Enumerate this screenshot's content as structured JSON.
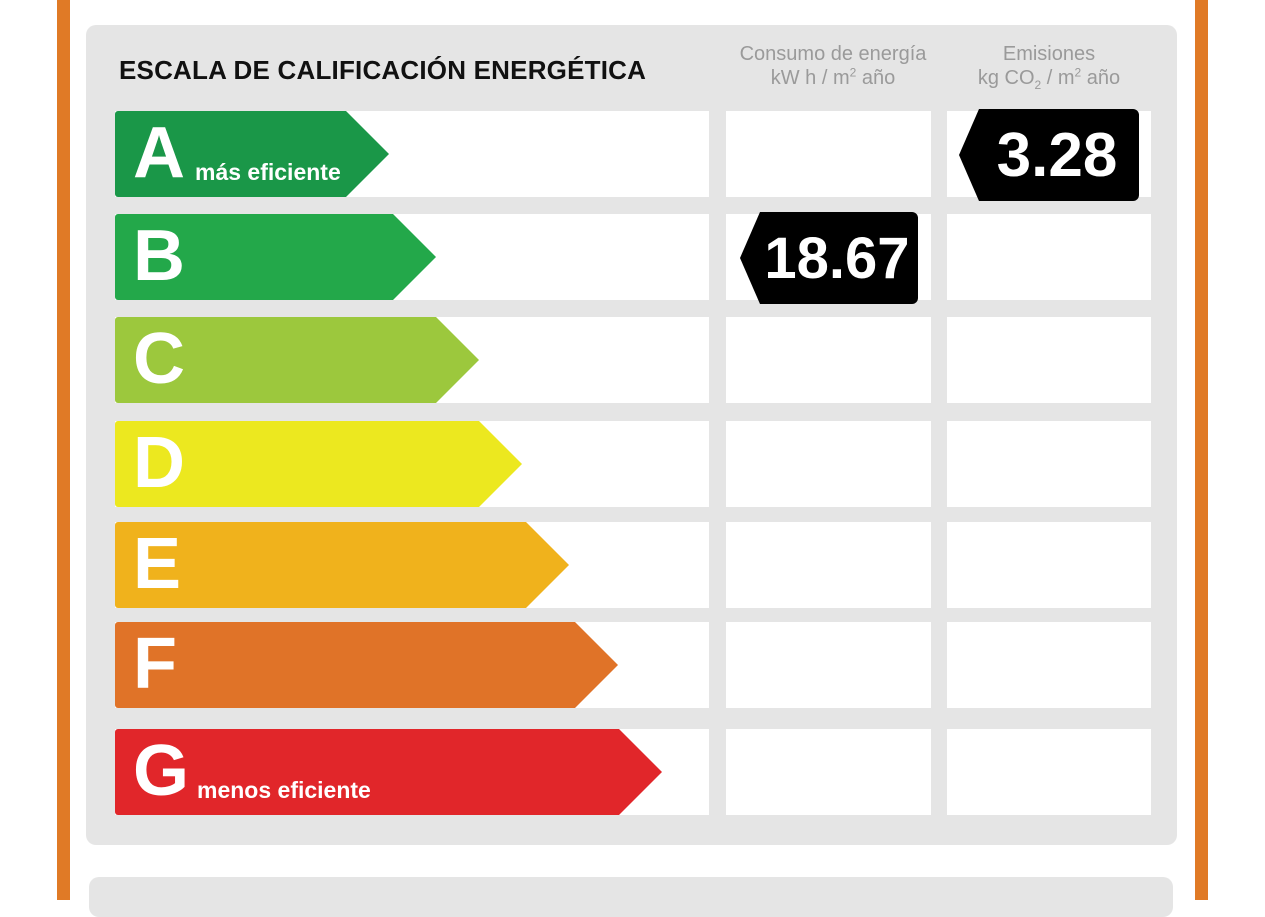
{
  "title": "ESCALA DE CALIFICACIÓN ENERGÉTICA",
  "columns": {
    "consumo": {
      "line1": "Consumo de energía",
      "unit_pre": "kW h / m",
      "unit_sup": "2",
      "unit_post": " año"
    },
    "emisiones": {
      "line1": "Emisiones",
      "unit_pre": "kg CO",
      "unit_sub": "2",
      "unit_mid": " / m",
      "unit_sup": "2",
      "unit_post": " año"
    }
  },
  "ratings": [
    {
      "letter": "A",
      "label": "más eficiente",
      "color": "#1a9748"
    },
    {
      "letter": "B",
      "label": "",
      "color": "#23a84a"
    },
    {
      "letter": "C",
      "label": "",
      "color": "#9cc83d"
    },
    {
      "letter": "D",
      "label": "",
      "color": "#ece81f"
    },
    {
      "letter": "E",
      "label": "",
      "color": "#f0b21c"
    },
    {
      "letter": "F",
      "label": "",
      "color": "#e07328"
    },
    {
      "letter": "G",
      "label": "menos eficiente",
      "color": "#e1262a"
    }
  ],
  "consumo_value": "18.67",
  "consumo_rating": "B",
  "emisiones_value": "3.28",
  "emisiones_rating": "A"
}
